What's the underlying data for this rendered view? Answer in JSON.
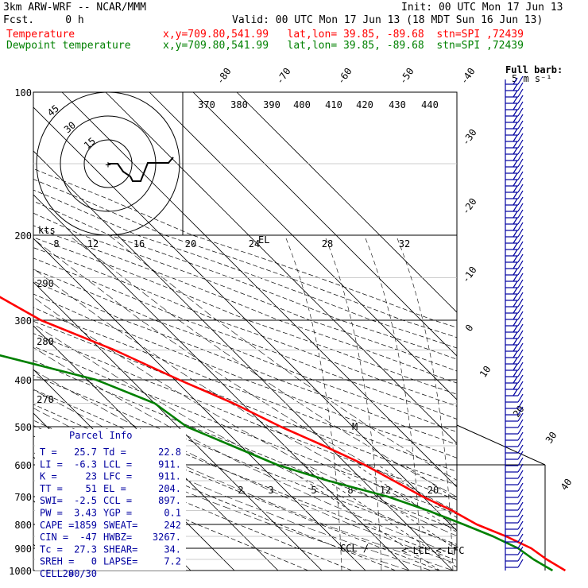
{
  "header": {
    "model": "3km ARW-WRF -- NCAR/MMM",
    "init": "Init: 00 UTC Mon 17 Jun 13",
    "fcst": "Fcst.     0 h",
    "valid": "Valid: 00 UTC Mon 17 Jun 13 (18 MDT Sun 16 Jun 13)",
    "temp_label": "Temperature",
    "dew_label": "Dewpoint temperature",
    "loc_info": "x,y=709.80,541.99   lat,lon= 39.85, -89.68  stn=SPI ,72439"
  },
  "colors": {
    "temperature": "#ff0000",
    "dewpoint": "#008000",
    "barbs": "#0000a0",
    "parcel": "#0000a0"
  },
  "chart_data": {
    "type": "line",
    "pressure_levels": [
      "100",
      "200",
      "300",
      "400",
      "500",
      "600",
      "700",
      "800",
      "900",
      "1000"
    ],
    "isotherm_labels": [
      "-80",
      "-70",
      "-60",
      "-50",
      "-40",
      "-30",
      "-20",
      "-10",
      "0",
      "10",
      "20",
      "30",
      "40"
    ],
    "theta_labels": [
      "370",
      "380",
      "390",
      "400",
      "410",
      "420",
      "430",
      "440",
      "290",
      "280",
      "270"
    ],
    "mixing_ratio_labels": [
      "2",
      "3",
      "5",
      "8",
      "12",
      "20"
    ],
    "wind_speed_labels": [
      "8",
      "12",
      "16",
      "20",
      "24",
      "28",
      "32"
    ],
    "hodograph": {
      "unit": "kts",
      "ring_labels": [
        "15",
        "30",
        "45"
      ]
    },
    "barb_legend": [
      "Full barb:",
      "5 m s⁻¹"
    ],
    "annotations": [
      "EL",
      "M",
      "CCL",
      "LCL",
      "LFC"
    ],
    "series": [
      {
        "name": "Temperature",
        "color": "#ff0000",
        "points": [
          [
            100,
            -62
          ],
          [
            130,
            -58
          ],
          [
            170,
            -59
          ],
          [
            200,
            -57
          ],
          [
            230,
            -50
          ],
          [
            260,
            -43
          ],
          [
            300,
            -37
          ],
          [
            350,
            -27
          ],
          [
            400,
            -19
          ],
          [
            450,
            -12
          ],
          [
            500,
            -6.5
          ],
          [
            550,
            -1
          ],
          [
            600,
            4
          ],
          [
            650,
            7
          ],
          [
            700,
            10
          ],
          [
            750,
            13.5
          ],
          [
            800,
            16
          ],
          [
            850,
            20
          ],
          [
            900,
            23
          ],
          [
            950,
            24
          ],
          [
            1000,
            25.7
          ]
        ]
      },
      {
        "name": "Dewpoint temperature",
        "color": "#008000",
        "points": [
          [
            100,
            -71
          ],
          [
            150,
            -78
          ],
          [
            200,
            -85
          ],
          [
            250,
            -75
          ],
          [
            300,
            -80
          ],
          [
            350,
            -58
          ],
          [
            400,
            -38
          ],
          [
            450,
            -30
          ],
          [
            500,
            -28
          ],
          [
            550,
            -22
          ],
          [
            600,
            -16
          ],
          [
            650,
            -8
          ],
          [
            700,
            2
          ],
          [
            750,
            8
          ],
          [
            800,
            13
          ],
          [
            850,
            17
          ],
          [
            900,
            20
          ],
          [
            950,
            21
          ],
          [
            1000,
            22.8
          ]
        ]
      }
    ]
  },
  "parcel_info": {
    "title": "Parcel Info",
    "rows": [
      [
        "T  =",
        "25.7",
        "Td =",
        "22.8"
      ],
      [
        "LI =",
        "-6.3",
        "LCL =",
        "911."
      ],
      [
        "K  =",
        "23",
        "LFC =",
        "911."
      ],
      [
        "TT =",
        "51",
        "EL  =",
        "204."
      ],
      [
        "SWI=",
        "-2.5",
        "CCL =",
        "897."
      ],
      [
        "PW =",
        "3.43",
        "YGP =",
        "0.1"
      ],
      [
        "CAPE =",
        "1859",
        "SWEAT=",
        "242"
      ],
      [
        "CIN  =",
        "-47",
        "HWBZ=",
        "3267."
      ],
      [
        "Tc =",
        "27.3",
        "SHEAR=",
        "34."
      ],
      [
        "SREH =",
        "0",
        "LAPSE=",
        "7.2"
      ],
      [
        "CELL =",
        "280/30",
        "",
        ""
      ]
    ]
  }
}
